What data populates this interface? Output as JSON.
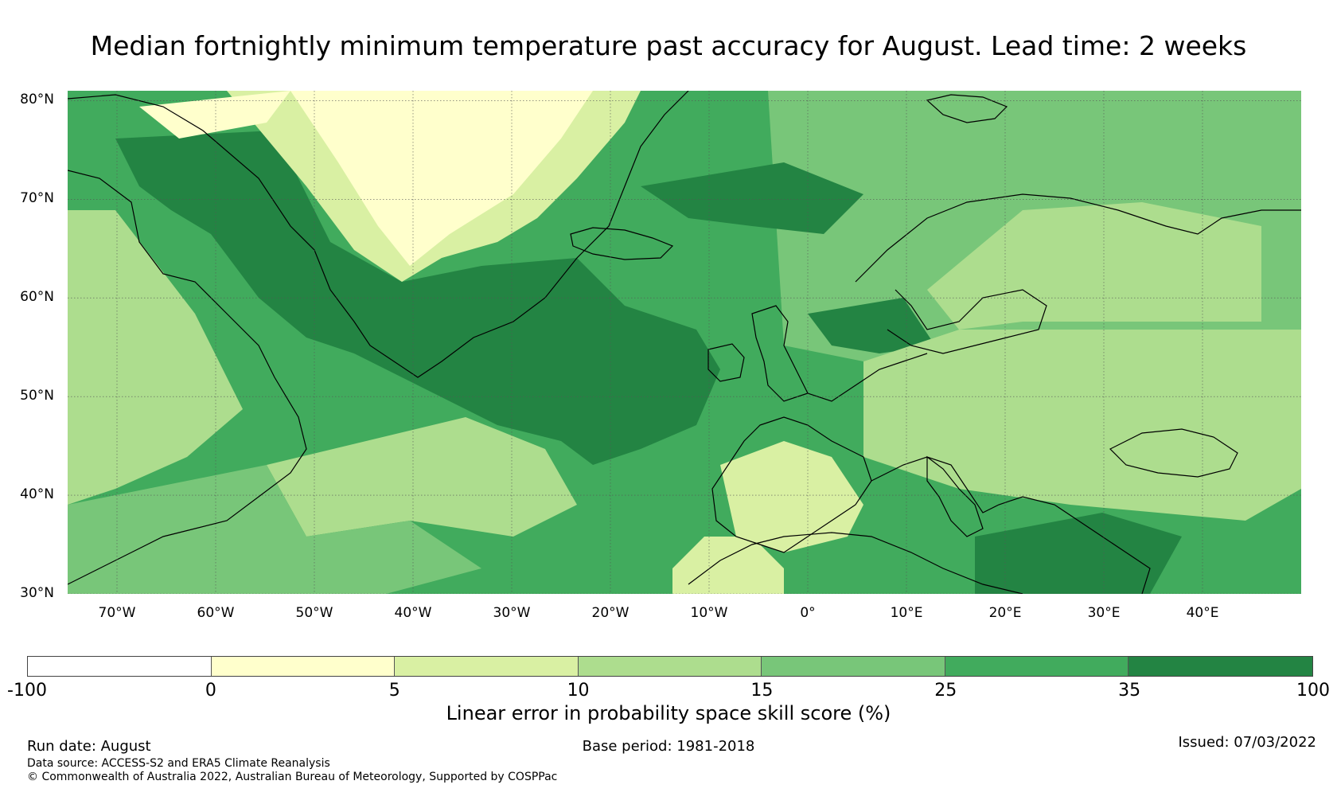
{
  "title": "Median fortnightly minimum temperature past accuracy for August. Lead time: 2 weeks",
  "map": {
    "lon_range": [
      -75,
      50
    ],
    "lat_range": [
      30,
      81
    ],
    "lat_ticks": [
      {
        "value": 80,
        "label": "80°N"
      },
      {
        "value": 70,
        "label": "70°N"
      },
      {
        "value": 60,
        "label": "60°N"
      },
      {
        "value": 50,
        "label": "50°N"
      },
      {
        "value": 40,
        "label": "40°N"
      },
      {
        "value": 30,
        "label": "30°N"
      }
    ],
    "lon_ticks": [
      {
        "value": -70,
        "label": "70°W"
      },
      {
        "value": -60,
        "label": "60°W"
      },
      {
        "value": -50,
        "label": "50°W"
      },
      {
        "value": -40,
        "label": "40°W"
      },
      {
        "value": -30,
        "label": "30°W"
      },
      {
        "value": -20,
        "label": "20°W"
      },
      {
        "value": -10,
        "label": "10°W"
      },
      {
        "value": 0,
        "label": "0°"
      },
      {
        "value": 10,
        "label": "10°E"
      },
      {
        "value": 20,
        "label": "20°E"
      },
      {
        "value": 30,
        "label": "30°E"
      },
      {
        "value": 40,
        "label": "40°E"
      }
    ],
    "background_color": "#41ab5d"
  },
  "colorbar": {
    "label": "Linear error in probability space skill score (%)",
    "boundaries": [
      "-100",
      "0",
      "5",
      "10",
      "15",
      "25",
      "35",
      "100"
    ],
    "colors": [
      "#ffffff",
      "#ffffcc",
      "#d9f0a3",
      "#addd8e",
      "#78c679",
      "#41ab5d",
      "#238443"
    ]
  },
  "footer": {
    "run_date": "Run date: August",
    "base_period": "Base period: 1981-2018",
    "issued": "Issued: 07/03/2022",
    "data_source": "Data source: ACCESS-S2 and ERA5 Climate Reanalysis",
    "copyright": "© Commonwealth of Australia 2022, Australian Bureau of Meteorology, Supported by COSPPac"
  }
}
